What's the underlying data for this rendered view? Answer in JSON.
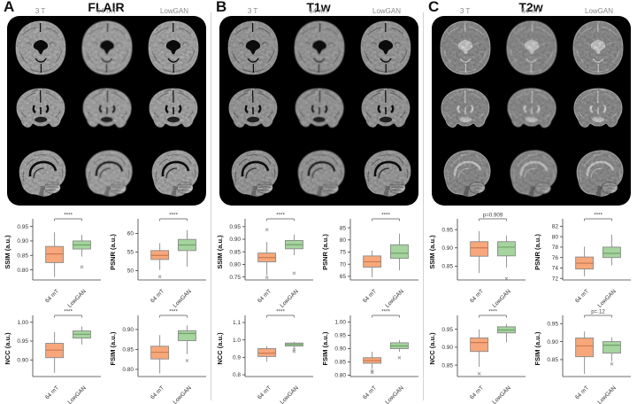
{
  "group_labels": [
    "64 mT",
    "LowGAN"
  ],
  "colors": {
    "box_group1": "#F7A77A",
    "box_group2": "#A5D49E",
    "box_median1": "#C97B52",
    "box_median2": "#74A06C",
    "box_border": "#8a8a8a",
    "whisker": "#8a8a8a",
    "axis": "#3c3c3c",
    "sig_text": "#3d3d3d",
    "col_label": "#8a8a8a",
    "mri_background": "#000000",
    "outlier": "#909090"
  },
  "panels": [
    {
      "letter": "A",
      "title": "FLAIR",
      "columns": [
        "3 T",
        "64 mT",
        "LowGAN"
      ],
      "views": [
        "axial",
        "coronal",
        "sagittal"
      ],
      "mri_style": {
        "brain": "#c0c0c0",
        "ventricle": "#0d0d0d",
        "sulci": "rgba(30,30,30,0.38)",
        "rim": "rgba(235,235,235,0.5)"
      }
    },
    {
      "letter": "B",
      "title": "T1w",
      "columns": [
        "3 T",
        "64 mT",
        "LowGAN"
      ],
      "views": [
        "axial",
        "coronal",
        "sagittal"
      ],
      "mri_style": {
        "brain": "#b4b4b4",
        "ventricle": "#0f0f0f",
        "sulci": "rgba(20,20,20,0.42)",
        "rim": "rgba(220,220,220,0.45)"
      }
    },
    {
      "letter": "C",
      "title": "T2w",
      "columns": [
        "3 T",
        "64 mT",
        "LowGAN"
      ],
      "views": [
        "axial",
        "coronal",
        "sagittal"
      ],
      "mri_style": {
        "brain": "#a2a2a2",
        "ventricle": "#eaeaea",
        "sulci": "rgba(240,240,240,0.5)",
        "rim": "rgba(245,245,245,0.6)"
      }
    }
  ],
  "chart_data": [
    {
      "panel": "A",
      "modality": "FLAIR",
      "metric": "SSIM",
      "type": "box",
      "ylabel": "SSIM (a.u.)",
      "sig": "****",
      "ylim": [
        0.765,
        0.958
      ],
      "yticks": [
        "0.80",
        "0.85",
        "0.90",
        "0.95"
      ],
      "categories": [
        "64 mT",
        "LowGAN"
      ],
      "series": [
        {
          "name": "64 mT",
          "whisker_low": 0.775,
          "q1": 0.825,
          "median": 0.855,
          "q3": 0.881,
          "whisker_high": 0.93,
          "outliers": []
        },
        {
          "name": "LowGAN",
          "whisker_low": 0.846,
          "q1": 0.872,
          "median": 0.886,
          "q3": 0.9,
          "whisker_high": 0.921,
          "outliers": [
            0.81
          ]
        }
      ]
    },
    {
      "panel": "A",
      "modality": "FLAIR",
      "metric": "PSNR",
      "type": "box",
      "ylabel": "PSNR (a.u.)",
      "sig": "****",
      "ylim": [
        47.5,
        62.5
      ],
      "yticks": [
        "50",
        "55",
        "60"
      ],
      "categories": [
        "64 mT",
        "LowGAN"
      ],
      "series": [
        {
          "name": "64 mT",
          "whisker_low": 50.2,
          "q1": 53.0,
          "median": 54.1,
          "q3": 55.4,
          "whisker_high": 57.4,
          "outliers": [
            48.4
          ]
        },
        {
          "name": "LowGAN",
          "whisker_low": 51.1,
          "q1": 55.4,
          "median": 56.9,
          "q3": 58.4,
          "whisker_high": 60.9,
          "outliers": []
        }
      ]
    },
    {
      "panel": "A",
      "modality": "FLAIR",
      "metric": "NCC",
      "type": "box",
      "ylabel": "NCC (a.u.)",
      "sig": "****",
      "ylim": [
        0.856,
        1.004
      ],
      "yticks": [
        "0.90",
        "0.95",
        "1.00"
      ],
      "categories": [
        "64 mT",
        "LowGAN"
      ],
      "series": [
        {
          "name": "64 mT",
          "whisker_low": 0.866,
          "q1": 0.906,
          "median": 0.926,
          "q3": 0.944,
          "whisker_high": 0.974,
          "outliers": []
        },
        {
          "name": "LowGAN",
          "whisker_low": 0.941,
          "q1": 0.958,
          "median": 0.968,
          "q3": 0.977,
          "whisker_high": 0.989,
          "outliers": []
        }
      ]
    },
    {
      "panel": "A",
      "modality": "FLAIR",
      "metric": "FSIM",
      "type": "box",
      "ylabel": "FSIM (a.u.)",
      "sig": "****",
      "ylim": [
        0.782,
        0.922
      ],
      "yticks": [
        "0.80",
        "0.85",
        "0.90"
      ],
      "categories": [
        "64 mT",
        "LowGAN"
      ],
      "series": [
        {
          "name": "64 mT",
          "whisker_low": 0.79,
          "q1": 0.826,
          "median": 0.843,
          "q3": 0.858,
          "whisker_high": 0.886,
          "outliers": []
        },
        {
          "name": "LowGAN",
          "whisker_low": 0.838,
          "q1": 0.872,
          "median": 0.89,
          "q3": 0.897,
          "whisker_high": 0.91,
          "outliers": [
            0.822
          ]
        }
      ]
    },
    {
      "panel": "B",
      "modality": "T1w",
      "metric": "SSIM",
      "type": "box",
      "ylabel": "SSIM (a.u.)",
      "sig": "****",
      "ylim": [
        0.738,
        0.96
      ],
      "yticks": [
        "0.75",
        "0.80",
        "0.85",
        "0.90",
        "0.95"
      ],
      "categories": [
        "64 mT",
        "LowGAN"
      ],
      "series": [
        {
          "name": "64 mT",
          "whisker_low": 0.757,
          "q1": 0.81,
          "median": 0.827,
          "q3": 0.845,
          "whisker_high": 0.889,
          "outliers": [
            0.938,
            0.748
          ]
        },
        {
          "name": "LowGAN",
          "whisker_low": 0.836,
          "q1": 0.862,
          "median": 0.878,
          "q3": 0.895,
          "whisker_high": 0.919,
          "outliers": [
            0.765
          ]
        }
      ]
    },
    {
      "panel": "B",
      "modality": "T1w",
      "metric": "PSNR",
      "type": "box",
      "ylabel": "PSNR (a.u.)",
      "sig": "****",
      "ylim": [
        63.5,
        86.5
      ],
      "yticks": [
        "65",
        "70",
        "75",
        "80",
        "85"
      ],
      "categories": [
        "64 mT",
        "LowGAN"
      ],
      "series": [
        {
          "name": "64 mT",
          "whisker_low": 64.6,
          "q1": 68.8,
          "median": 71.0,
          "q3": 73.4,
          "whisker_high": 75.6,
          "outliers": []
        },
        {
          "name": "LowGAN",
          "whisker_low": 67.5,
          "q1": 72.4,
          "median": 74.5,
          "q3": 78.0,
          "whisker_high": 82.6,
          "outliers": []
        }
      ]
    },
    {
      "panel": "B",
      "modality": "T1w",
      "metric": "NCC",
      "type": "box",
      "ylabel": "NCC (a.u.)",
      "sig": "****",
      "ylim": [
        0.79,
        1.11
      ],
      "yticks": [
        "0.8",
        "0.9",
        "1.0",
        "1.1"
      ],
      "categories": [
        "64 mT",
        "LowGAN"
      ],
      "series": [
        {
          "name": "64 mT",
          "whisker_low": 0.876,
          "q1": 0.905,
          "median": 0.924,
          "q3": 0.95,
          "whisker_high": 0.964,
          "outliers": []
        },
        {
          "name": "LowGAN",
          "whisker_low": 0.951,
          "q1": 0.965,
          "median": 0.974,
          "q3": 0.982,
          "whisker_high": 0.99,
          "outliers": [
            0.945,
            0.934
          ]
        }
      ]
    },
    {
      "panel": "B",
      "modality": "T1w",
      "metric": "FSIM",
      "type": "box",
      "ylabel": "FSIM (a.u.)",
      "sig": "****",
      "ylim": [
        0.795,
        1.005
      ],
      "yticks": [
        "0.80",
        "0.85",
        "0.90",
        "0.95",
        "1.00"
      ],
      "categories": [
        "64 mT",
        "LowGAN"
      ],
      "series": [
        {
          "name": "64 mT",
          "whisker_low": 0.824,
          "q1": 0.845,
          "median": 0.855,
          "q3": 0.866,
          "whisker_high": 0.888,
          "outliers": [
            0.816,
            0.81
          ]
        },
        {
          "name": "LowGAN",
          "whisker_low": 0.888,
          "q1": 0.9,
          "median": 0.91,
          "q3": 0.922,
          "whisker_high": 0.932,
          "outliers": [
            0.866
          ]
        }
      ]
    },
    {
      "panel": "C",
      "modality": "T2w",
      "metric": "SSIM",
      "type": "box",
      "ylabel": "SSIM (a.u.)",
      "sig": "p=0.909",
      "ylim": [
        0.812,
        0.965
      ],
      "yticks": [
        "0.85",
        "0.90",
        "0.95"
      ],
      "categories": [
        "64 mT",
        "LowGAN"
      ],
      "series": [
        {
          "name": "64 mT",
          "whisker_low": 0.831,
          "q1": 0.877,
          "median": 0.9,
          "q3": 0.917,
          "whisker_high": 0.946,
          "outliers": []
        },
        {
          "name": "LowGAN",
          "whisker_low": 0.846,
          "q1": 0.878,
          "median": 0.902,
          "q3": 0.917,
          "whisker_high": 0.934,
          "outliers": [
            0.816
          ]
        }
      ]
    },
    {
      "panel": "C",
      "modality": "T2w",
      "metric": "PSNR",
      "type": "box",
      "ylabel": "PSNR (a.u.)",
      "sig": "****",
      "ylim": [
        71.7,
        82.4
      ],
      "yticks": [
        "72",
        "74",
        "76",
        "78",
        "80",
        "82"
      ],
      "categories": [
        "64 mT",
        "LowGAN"
      ],
      "series": [
        {
          "name": "64 mT",
          "whisker_low": 72.4,
          "q1": 73.8,
          "median": 74.9,
          "q3": 76.1,
          "whisker_high": 78.1,
          "outliers": []
        },
        {
          "name": "LowGAN",
          "whisker_low": 74.5,
          "q1": 76.0,
          "median": 76.8,
          "q3": 78.0,
          "whisker_high": 80.4,
          "outliers": []
        }
      ]
    },
    {
      "panel": "C",
      "modality": "T2w",
      "metric": "NCC",
      "type": "box",
      "ylabel": "NCC (a.u.)",
      "sig": "****",
      "ylim": [
        0.818,
        0.974
      ],
      "yticks": [
        "0.85",
        "0.90",
        "0.95"
      ],
      "categories": [
        "64 mT",
        "LowGAN"
      ],
      "series": [
        {
          "name": "64 mT",
          "whisker_low": 0.845,
          "q1": 0.888,
          "median": 0.913,
          "q3": 0.926,
          "whisker_high": 0.95,
          "outliers": [
            0.826
          ]
        },
        {
          "name": "LowGAN",
          "whisker_low": 0.914,
          "q1": 0.94,
          "median": 0.948,
          "q3": 0.957,
          "whisker_high": 0.965,
          "outliers": []
        }
      ]
    },
    {
      "panel": "C",
      "modality": "T2w",
      "metric": "FSIM",
      "type": "box",
      "ylabel": "FSIM (a.u.)",
      "sig": "p=.12",
      "ylim": [
        0.803,
        0.958
      ],
      "yticks": [
        "0.85",
        "0.90",
        "0.95"
      ],
      "categories": [
        "64 mT",
        "LowGAN"
      ],
      "series": [
        {
          "name": "64 mT",
          "whisker_low": 0.81,
          "q1": 0.858,
          "median": 0.888,
          "q3": 0.91,
          "whisker_high": 0.928,
          "outliers": []
        },
        {
          "name": "LowGAN",
          "whisker_low": 0.845,
          "q1": 0.868,
          "median": 0.89,
          "q3": 0.9,
          "whisker_high": 0.912,
          "outliers": [
            0.838
          ]
        }
      ]
    }
  ]
}
